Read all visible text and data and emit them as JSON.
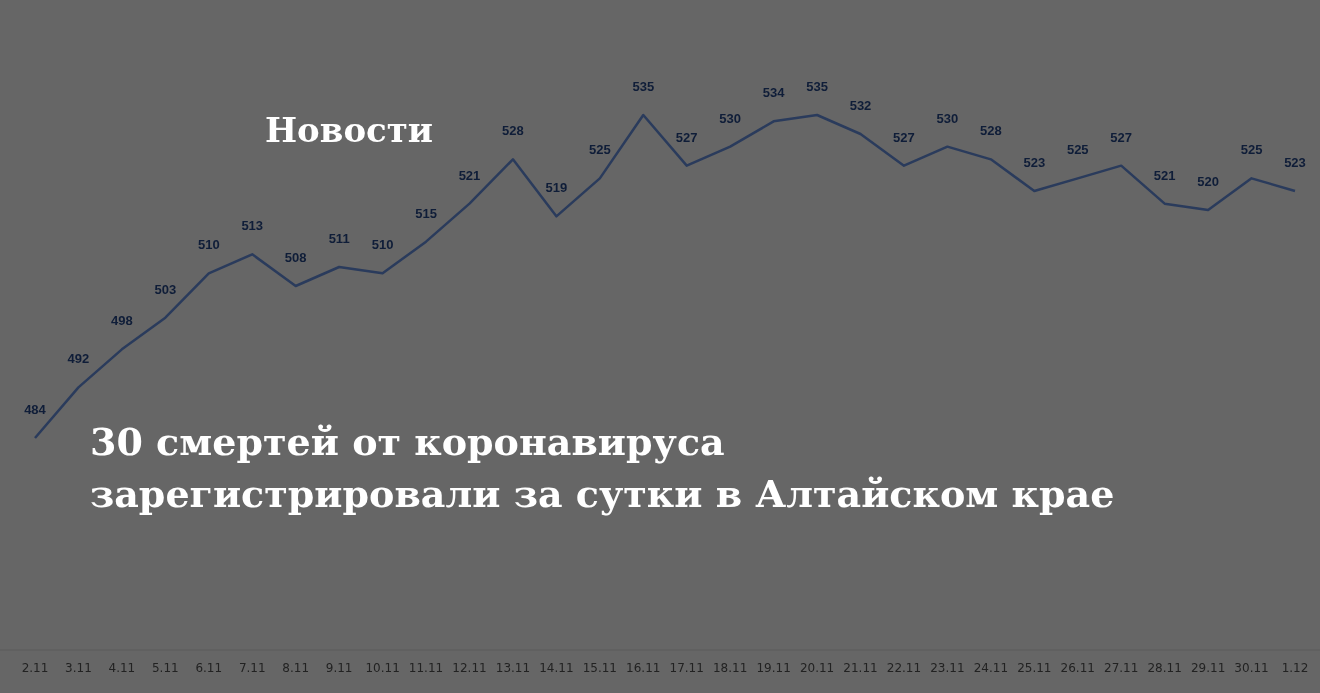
{
  "chart_data": {
    "type": "line",
    "title": "30 смертей от коронавируса зарегистрировали за сутки в Алтайском крае",
    "subtitle": "Новости",
    "categories": [
      "2.11",
      "3.11",
      "4.11",
      "5.11",
      "6.11",
      "7.11",
      "8.11",
      "9.11",
      "10.11",
      "11.11",
      "12.11",
      "13.11",
      "14.11",
      "15.11",
      "16.11",
      "17.11",
      "18.11",
      "19.11",
      "20.11",
      "21.11",
      "22.11",
      "23.11",
      "24.11",
      "25.11",
      "26.11",
      "27.11",
      "28.11",
      "29.11",
      "30.11",
      "1.12"
    ],
    "series": [
      {
        "color": "#2a3b5c",
        "values": [
          484,
          492,
          498,
          503,
          510,
          513,
          508,
          511,
          510,
          515,
          521,
          528,
          519,
          525,
          535,
          527,
          530,
          534,
          535,
          532,
          527,
          530,
          528,
          523,
          525,
          527,
          521,
          520,
          525,
          523
        ]
      }
    ],
    "data_labels": true,
    "marker": "none",
    "line_style": "solid"
  }
}
